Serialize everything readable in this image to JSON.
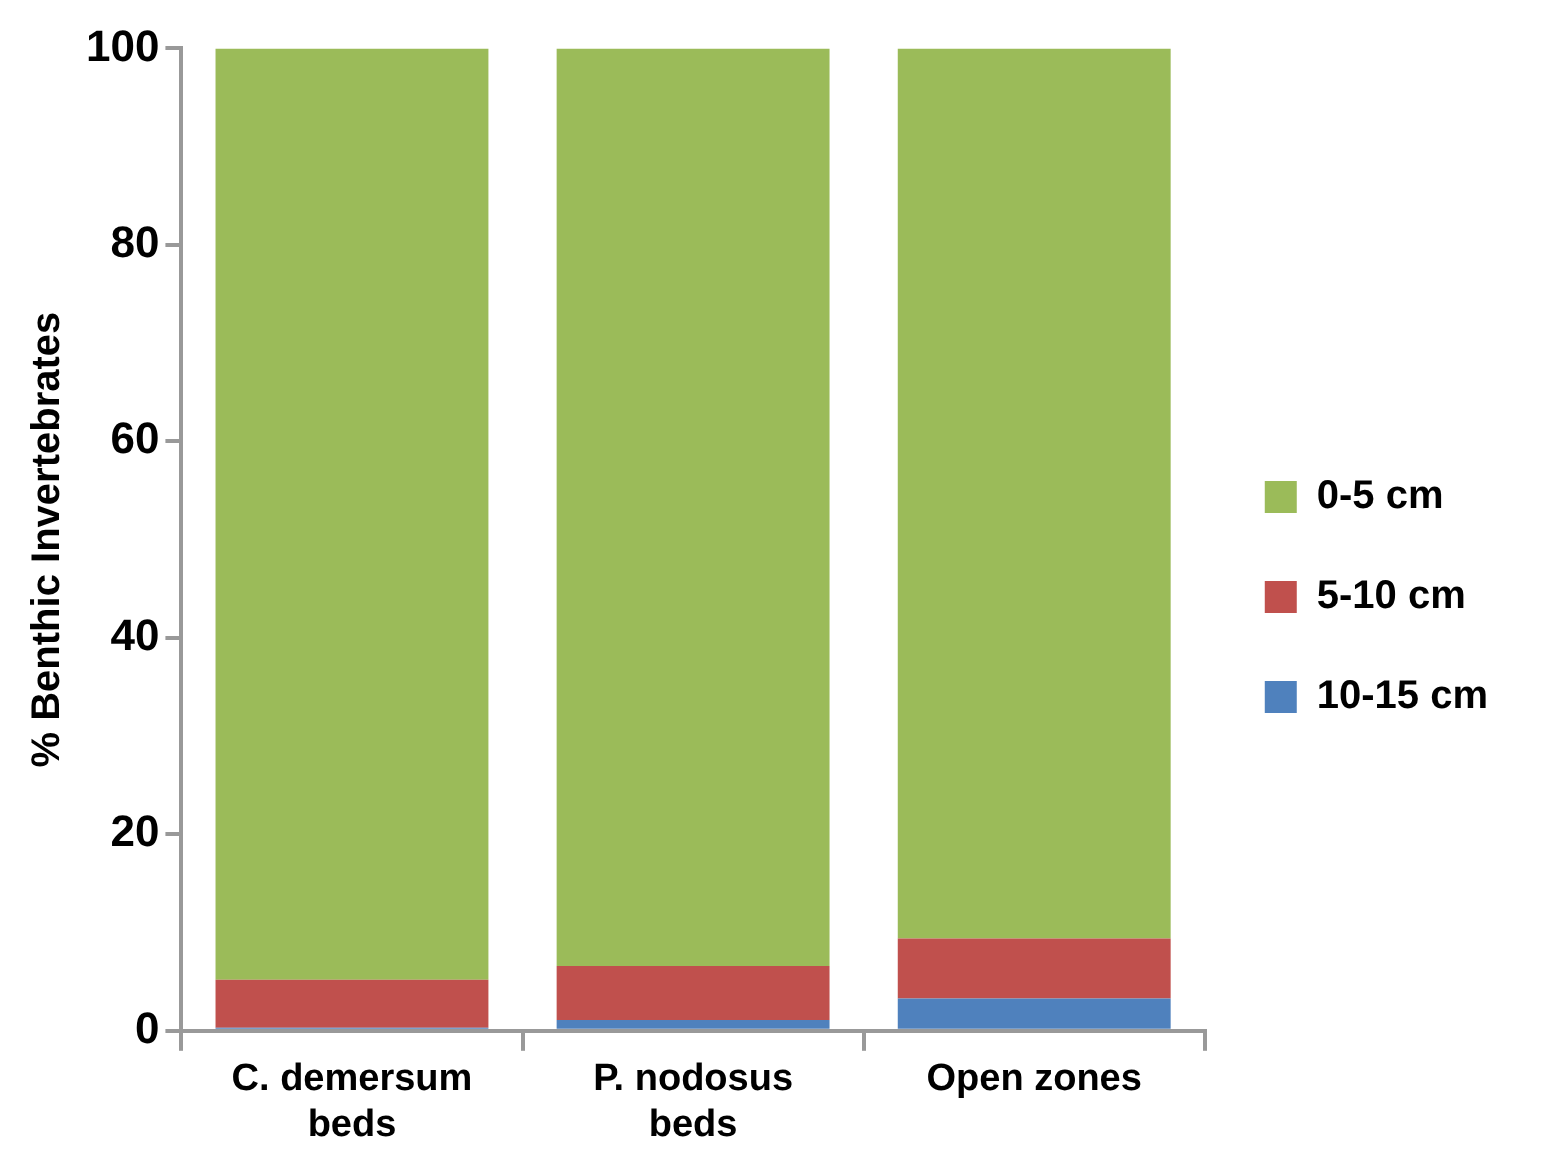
{
  "chart_data": {
    "type": "bar",
    "stacked": true,
    "ylabel": "% Benthic Invertebrates",
    "categories": [
      "C. demersum beds",
      "P. nodosus beds",
      "Open zones"
    ],
    "series": [
      {
        "name": "10-15 cm",
        "color": "#4f81bd",
        "values": [
          0.3,
          1.1,
          3.3
        ]
      },
      {
        "name": "5-10 cm",
        "color": "#c0504d",
        "values": [
          4.9,
          5.5,
          6.1
        ]
      },
      {
        "name": "0-5 cm",
        "color": "#9bbb59",
        "values": [
          94.8,
          93.4,
          90.6
        ]
      }
    ],
    "ylim": [
      0,
      100
    ],
    "yticks": [
      0,
      20,
      40,
      60,
      80,
      100
    ],
    "grid": false,
    "legend": "right"
  }
}
